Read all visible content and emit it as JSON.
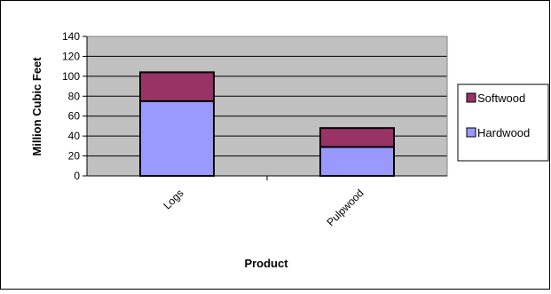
{
  "chart_data": {
    "type": "bar",
    "stacked": true,
    "title": "",
    "xlabel": "Product",
    "ylabel": "Million Cubic Feet",
    "categories": [
      "Logs",
      "Pulpwood"
    ],
    "series": [
      {
        "name": "Hardwood",
        "values": [
          75,
          29
        ],
        "color": "#9999ff"
      },
      {
        "name": "Softwood",
        "values": [
          29,
          19
        ],
        "color": "#993366"
      }
    ],
    "ylim": [
      0,
      140
    ],
    "yticks": [
      0,
      20,
      40,
      60,
      80,
      100,
      120,
      140
    ],
    "grid": true,
    "legend_position": "right",
    "plot_background": "#c0c0c0"
  }
}
